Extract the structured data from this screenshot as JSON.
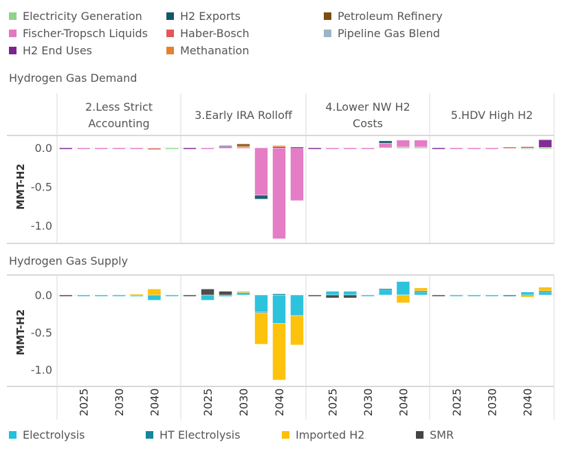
{
  "top_legend": {
    "items": [
      {
        "label": "Electricity Generation",
        "color": "#8fd48a"
      },
      {
        "label": "Fischer-Tropsch Liquids",
        "color": "#e377c2"
      },
      {
        "label": "H2 End Uses",
        "color": "#7b2391"
      },
      {
        "label": "H2 Exports",
        "color": "#13586a"
      },
      {
        "label": "Haber-Bosch",
        "color": "#e45659"
      },
      {
        "label": "Methanation",
        "color": "#e6812f"
      },
      {
        "label": "Petroleum Refinery",
        "color": "#7a4d10"
      },
      {
        "label": "Pipeline Gas Blend",
        "color": "#9ab6c4"
      }
    ]
  },
  "bottom_legend": {
    "items": [
      {
        "label": "Electrolysis",
        "color": "#22c0dc"
      },
      {
        "label": "HT Electrolysis",
        "color": "#14879a"
      },
      {
        "label": "Imported H2",
        "color": "#fdbf00"
      },
      {
        "label": "SMR",
        "color": "#444444"
      }
    ]
  },
  "chart_data": [
    {
      "type": "bar",
      "stacked": true,
      "title": "Hydrogen Gas Demand",
      "ylabel": "MMT-H2",
      "ylim": [
        -1.2,
        0.15
      ],
      "yticks": [
        0.0,
        -0.5,
        -1.0
      ],
      "ytick_labels": [
        "0.0",
        "-0.5",
        "-1.0"
      ],
      "panels": [
        "2.Less Strict Accounting",
        "3.Early IRA Rolloff",
        "4.Lower NW H2 Costs",
        "5.HDV High H2"
      ],
      "panel_label_lines": [
        [
          "2.Less Strict",
          "Accounting"
        ],
        [
          "3.Early IRA Rolloff"
        ],
        [
          "4.Lower NW H2",
          "Costs"
        ],
        [
          "5.HDV High H2"
        ]
      ],
      "bars_per_panel": 7,
      "series_order": [
        "Electricity Generation",
        "Fischer-Tropsch Liquids",
        "H2 End Uses",
        "H2 Exports",
        "Haber-Bosch",
        "Methanation",
        "Petroleum Refinery",
        "Pipeline Gas Blend"
      ],
      "data": [
        [
          {
            "H2 End Uses": -0.004
          },
          {
            "Fischer-Tropsch Liquids": -0.003
          },
          {
            "Fischer-Tropsch Liquids": -0.003
          },
          {
            "Fischer-Tropsch Liquids": -0.003
          },
          {
            "Fischer-Tropsch Liquids": -0.003
          },
          {
            "Haber-Bosch": -0.003,
            "Electricity Generation": -0.005
          },
          {
            "Electricity Generation": -0.004
          }
        ],
        [
          {
            "H2 End Uses": -0.004
          },
          {
            "Fischer-Tropsch Liquids": -0.003
          },
          {
            "Fischer-Tropsch Liquids": 0.01,
            "Pipeline Gas Blend": 0.015,
            "H2 End Uses": 0.01
          },
          {
            "Methanation": 0.01,
            "Petroleum Refinery": 0.03,
            "Fischer-Tropsch Liquids": 0.01
          },
          {
            "H2 Exports": -0.05,
            "Fischer-Tropsch Liquids": -0.61
          },
          {
            "Methanation": 0.015,
            "H2 End Uses": 0.015,
            "Fischer-Tropsch Liquids": -1.17
          },
          {
            "H2 End Uses": 0.01,
            "Fischer-Tropsch Liquids": -0.68
          }
        ],
        [
          {
            "H2 End Uses": -0.004
          },
          {
            "Fischer-Tropsch Liquids": -0.003
          },
          {
            "Fischer-Tropsch Liquids": -0.003
          },
          {
            "Fischer-Tropsch Liquids": -0.003
          },
          {
            "H2 Exports": 0.03,
            "Fischer-Tropsch Liquids": 0.06
          },
          {
            "Electricity Generation": 0.01,
            "Fischer-Tropsch Liquids": 0.09
          },
          {
            "Electricity Generation": 0.01,
            "Fischer-Tropsch Liquids": 0.09
          }
        ],
        [
          {
            "H2 End Uses": -0.004
          },
          {
            "Fischer-Tropsch Liquids": -0.003
          },
          {
            "Fischer-Tropsch Liquids": -0.003
          },
          {
            "Fischer-Tropsch Liquids": -0.003
          },
          {
            "Haber-Bosch": 0.01
          },
          {
            "Electricity Generation": -0.01,
            "H2 End Uses": 0.01,
            "Haber-Bosch": 0.005
          },
          {
            "Electricity Generation": 0.005,
            "H2 End Uses": 0.1
          }
        ]
      ]
    },
    {
      "type": "bar",
      "stacked": true,
      "title": "Hydrogen Gas Supply",
      "ylabel": "MMT-H2",
      "ylim": [
        -1.2,
        0.2
      ],
      "yticks": [
        0.0,
        -0.5,
        -1.0
      ],
      "ytick_labels": [
        "0.0",
        "-0.5",
        "-1.0"
      ],
      "xtick_labels": [
        "",
        "2025",
        "",
        "2030",
        "",
        "2040",
        ""
      ],
      "bars_per_panel": 7,
      "series_order": [
        "Electrolysis",
        "HT Electrolysis",
        "Imported H2",
        "SMR"
      ],
      "data": [
        [
          {
            "SMR": -0.004
          },
          {
            "Electrolysis": -0.003
          },
          {
            "Electrolysis": -0.003
          },
          {
            "Electrolysis": -0.003
          },
          {
            "Imported H2": 0.01,
            "Electrolysis": -0.02
          },
          {
            "Imported H2": 0.08,
            "Electrolysis": -0.07
          },
          {
            "Electrolysis": -0.003
          }
        ],
        [
          {
            "SMR": -0.004
          },
          {
            "SMR": 0.08,
            "Electrolysis": -0.07
          },
          {
            "SMR": 0.05,
            "Electrolysis": -0.02
          },
          {
            "Imported H2": 0.01,
            "Electrolysis": 0.04
          },
          {
            "HT Electrolysis": -0.01,
            "Imported H2": -0.42,
            "Electrolysis": -0.23
          },
          {
            "HT Electrolysis": 0.015,
            "Imported H2": -0.76,
            "Electrolysis": -0.38
          },
          {
            "HT Electrolysis": -0.01,
            "Imported H2": -0.39,
            "Electrolysis": -0.27
          }
        ],
        [
          {
            "SMR": -0.004
          },
          {
            "Electrolysis": 0.05,
            "SMR": -0.04
          },
          {
            "Electrolysis": 0.05,
            "SMR": -0.04
          },
          {
            "Electrolysis": -0.003
          },
          {
            "HT Electrolysis": 0.005,
            "Electrolysis": 0.08
          },
          {
            "Electrolysis": 0.18,
            "Imported H2": -0.1,
            "HT Electrolysis": -0.005
          },
          {
            "HT Electrolysis": 0.005,
            "Imported H2": 0.04,
            "Electrolysis": 0.05
          }
        ],
        [
          {
            "SMR": -0.004
          },
          {
            "Electrolysis": -0.003
          },
          {
            "Electrolysis": -0.003
          },
          {
            "Electrolysis": -0.003
          },
          {
            "HT Electrolysis": -0.005
          },
          {
            "Electrolysis": 0.04,
            "Imported H2": -0.02,
            "HT Electrolysis": -0.01
          },
          {
            "HT Electrolysis": 0.005,
            "Imported H2": 0.05,
            "Electrolysis": 0.05
          }
        ]
      ]
    }
  ]
}
